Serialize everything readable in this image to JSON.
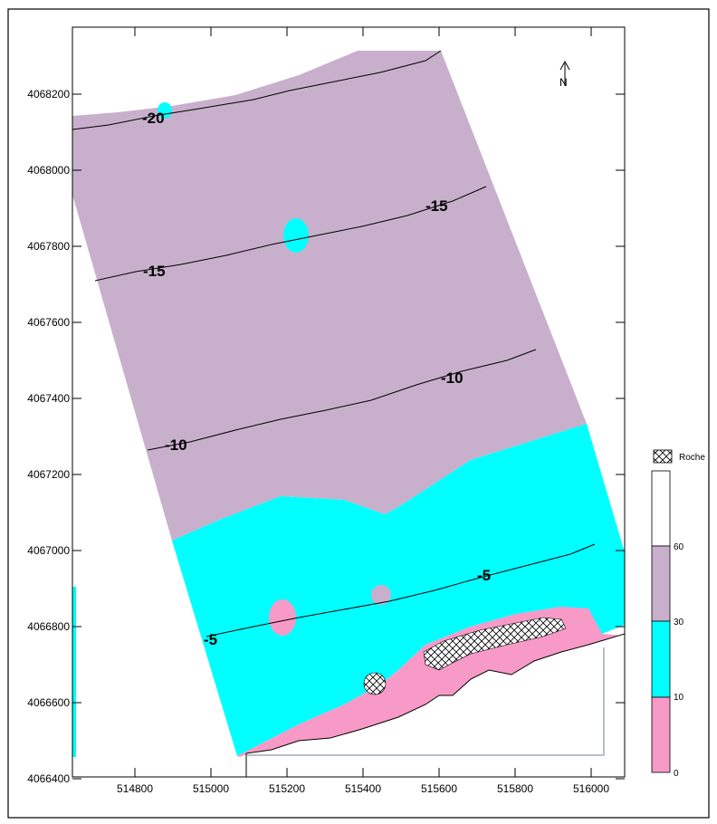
{
  "map": {
    "north_arrow_label": "N",
    "x_ticks": [
      "514800",
      "515000",
      "515200",
      "515400",
      "515600",
      "515800",
      "516000"
    ],
    "y_ticks": [
      "4068200",
      "4068000",
      "4067800",
      "4067600",
      "4067400",
      "4067200",
      "4067000",
      "4066800",
      "4066600",
      "4066400"
    ],
    "contour_labels": {
      "c20": "-20",
      "c15a": "-15",
      "c15b": "-15",
      "c10a": "-10",
      "c10b": "-10",
      "c5a": "-5",
      "c5b": "-5"
    },
    "zones": [
      {
        "name": "0-10",
        "color": "#f79ac8"
      },
      {
        "name": "10-30",
        "color": "#00ffff"
      },
      {
        "name": "30-60",
        "color": "#c8b0cc"
      },
      {
        "name": ">60",
        "color": "#ffffff"
      }
    ]
  },
  "legend": {
    "rock_label": "Roche",
    "values": [
      "60",
      "30",
      "10",
      "0"
    ],
    "colors": {
      "rock": "#ffffff",
      "c0": "#f79ac8",
      "c10": "#00ffff",
      "c30": "#c8b0cc",
      "c60": "#ffffff"
    }
  }
}
